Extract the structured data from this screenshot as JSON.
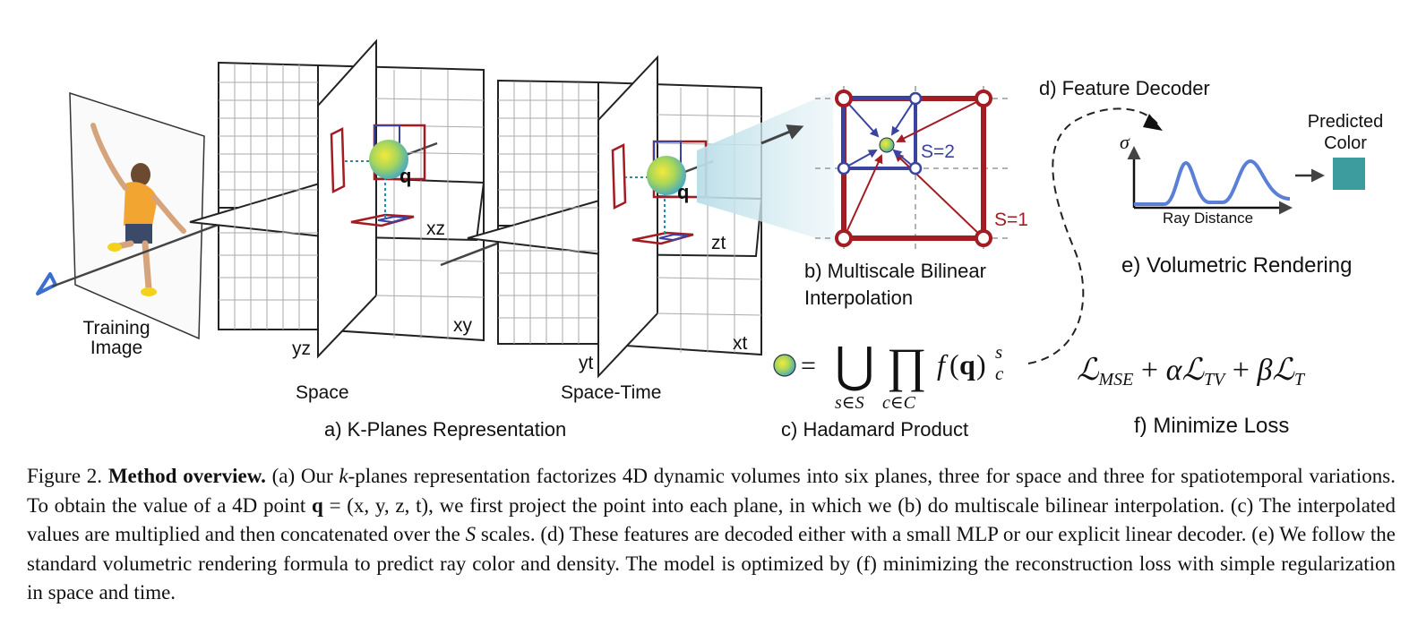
{
  "figure": {
    "labels": {
      "training_image": [
        "Training",
        "Image"
      ],
      "space": "Space",
      "space_time": "Space-Time",
      "plane_xz": "xz",
      "plane_xy": "xy",
      "plane_yz": "yz",
      "plane_zt": "zt",
      "plane_xt": "xt",
      "plane_yt": "yt",
      "point_q": "q",
      "panel_a": "a) K-Planes Representation",
      "panel_b": [
        "b) Multiscale Bilinear",
        "Interpolation"
      ],
      "scale_2": "S=2",
      "scale_1": "S=1",
      "panel_c": "c) Hadamard Product",
      "panel_d": "d) Feature Decoder",
      "sigma": "σ",
      "ray_distance": "Ray Distance",
      "predicted_color": [
        "Predicted",
        "Color"
      ],
      "panel_e": "e) Volumetric Rendering",
      "panel_f": "f) Minimize Loss"
    },
    "colors": {
      "grid": "#222222",
      "red_box": "#a31c22",
      "blue_box": "#3a44a0",
      "curve": "#5b7fd6",
      "predicted_color": "#3d9c9e",
      "ray": "#444444"
    }
  },
  "caption": {
    "label": "Figure 2.",
    "title": "Method overview.",
    "p1": "(a) Our",
    "k": "k",
    "p2": "-planes representation factorizes 4D dynamic volumes into six planes, three for space and three for spatiotemporal variations. To obtain the value of a 4D point",
    "q": "q",
    "p3": "= (x, y, z, t), we first project the point into each plane, in which we (b) do multiscale bilinear interpolation. (c) The interpolated values are multiplied and then concatenated over the",
    "S": "S",
    "p4": "scales. (d) These features are decoded either with a small MLP or our explicit linear decoder. (e) We follow the standard volumetric rendering formula to predict ray color and density. The model is optimized by (f) minimizing the reconstruction loss with simple regularization in space and time."
  }
}
